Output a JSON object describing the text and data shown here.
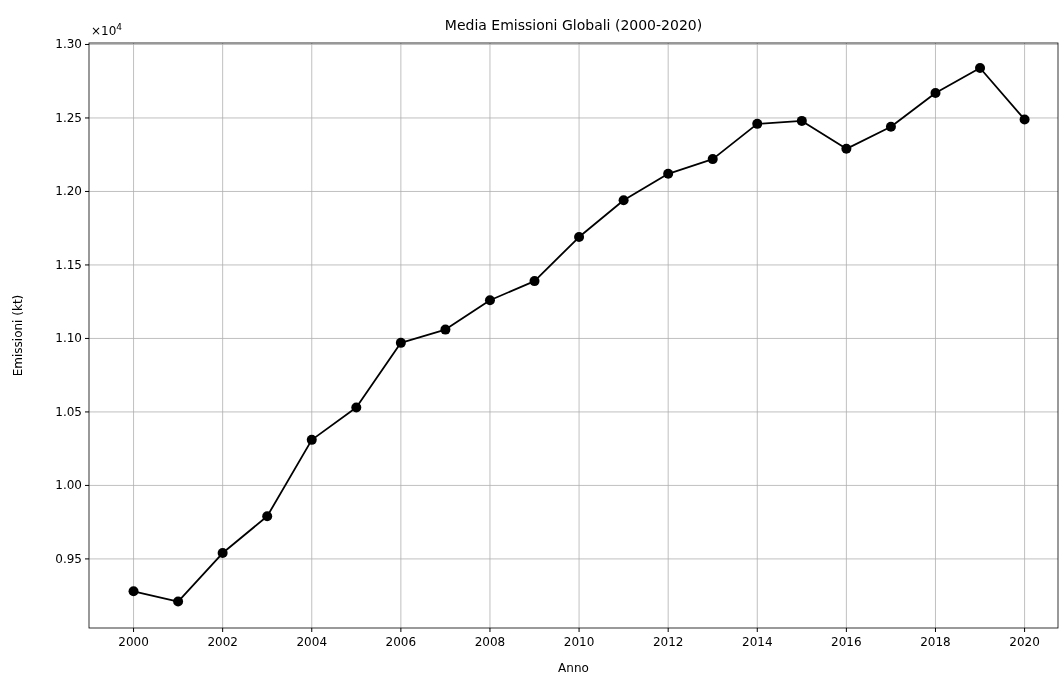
{
  "chart_data": {
    "type": "line",
    "title": "Media Emissioni Globali (2000-2020)",
    "xlabel": "Anno",
    "ylabel": "Emissioni (kt)",
    "x": [
      2000,
      2001,
      2002,
      2003,
      2004,
      2005,
      2006,
      2007,
      2008,
      2009,
      2010,
      2011,
      2012,
      2013,
      2014,
      2015,
      2016,
      2017,
      2018,
      2019,
      2020
    ],
    "series": [
      {
        "color": "#000000",
        "values": [
          0.928,
          0.921,
          0.954,
          0.979,
          1.031,
          1.053,
          1.097,
          1.106,
          1.126,
          1.139,
          1.169,
          1.194,
          1.212,
          1.222,
          1.246,
          1.248,
          1.229,
          1.244,
          1.267,
          1.284,
          1.249
        ]
      }
    ],
    "xlim": [
      1999,
      2020.75
    ],
    "xticks": [
      2000,
      2002,
      2004,
      2006,
      2008,
      2010,
      2012,
      2014,
      2016,
      2018,
      2020
    ],
    "ylim": [
      0.903,
      1.301
    ],
    "yticks": [
      {
        "value": 0.95,
        "label": "0.95"
      },
      {
        "value": 1.0,
        "label": "1.00"
      },
      {
        "value": 1.05,
        "label": "1.05"
      },
      {
        "value": 1.1,
        "label": "1.10"
      },
      {
        "value": 1.15,
        "label": "1.15"
      },
      {
        "value": 1.2,
        "label": "1.20"
      },
      {
        "value": 1.25,
        "label": "1.25"
      },
      {
        "value": 1.3,
        "label": "1.30"
      }
    ],
    "annotations": [
      "×10$^{4}$"
    ],
    "grid": true,
    "marker": "circle",
    "line_style": "solid"
  }
}
